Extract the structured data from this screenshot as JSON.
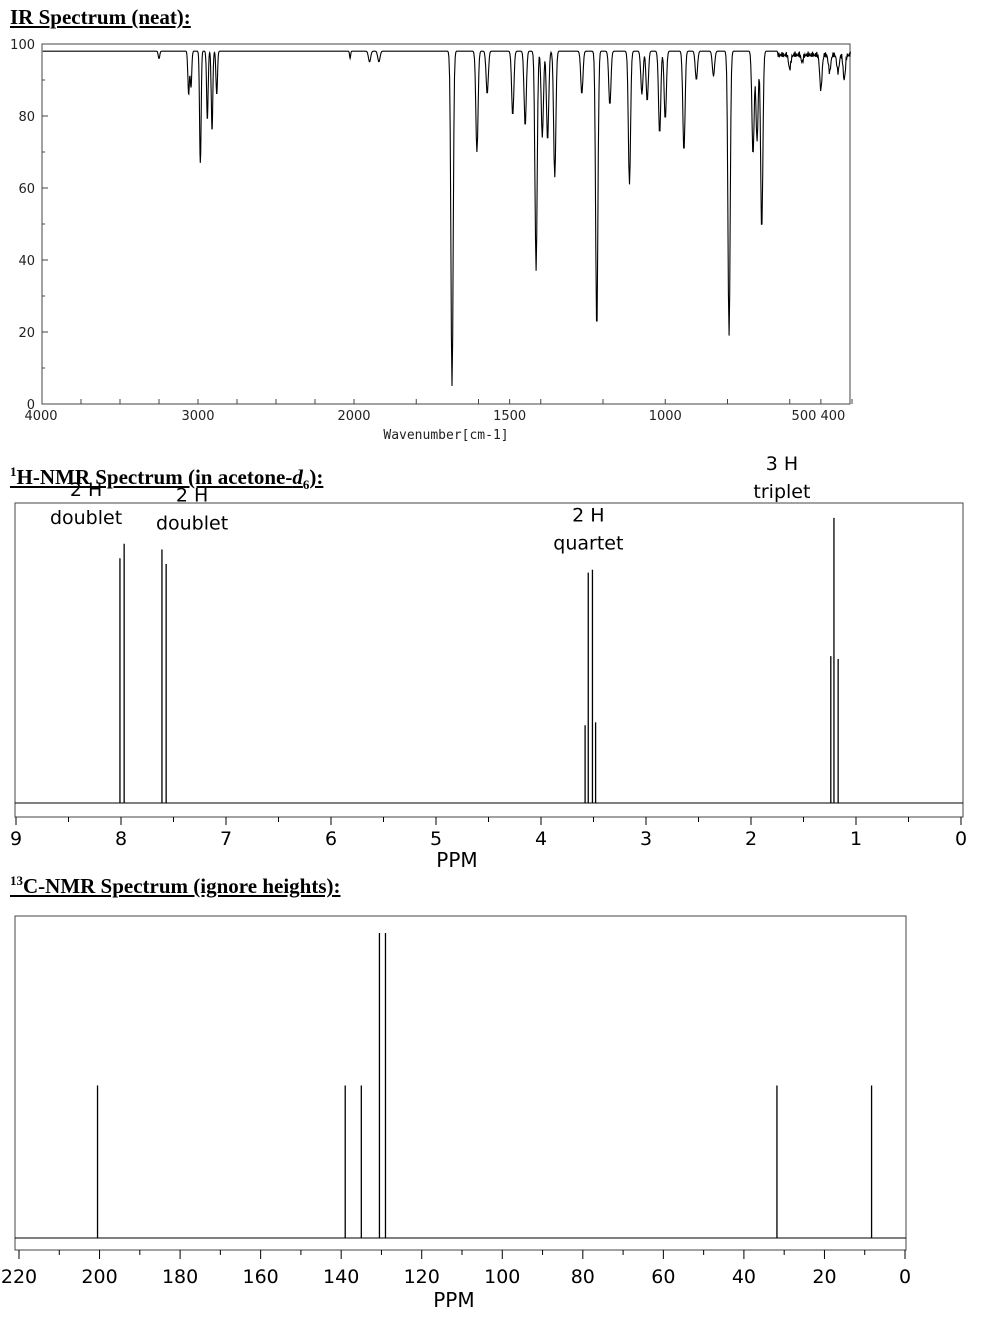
{
  "headings": {
    "ir": {
      "main": "IR Spectrum (neat):"
    },
    "h1": {
      "sup": "1",
      "main": "H-NMR Spectrum (in acetone-",
      "italic": "d",
      "sub": "6",
      "tail": "):"
    },
    "c13": {
      "sup": "13",
      "main": "C-NMR Spectrum (ignore heights):"
    }
  },
  "chart_data": [
    {
      "type": "line",
      "title": "IR Spectrum (neat):",
      "xlabel": "Wavenumber[cm-1]",
      "ylabel": "",
      "x_reversed": true,
      "xlim": [
        4000,
        400
      ],
      "ylim": [
        0,
        100
      ],
      "x_ticks": [
        4000,
        3000,
        2000,
        1500,
        1000,
        "500",
        "400"
      ],
      "x_tick_labels": [
        "4000",
        "3000",
        "2000",
        "1500",
        "1000",
        "500 400"
      ],
      "y_ticks": [
        100,
        80,
        60,
        40,
        20,
        0
      ],
      "y_tick_labels": [
        "100",
        "80",
        "60",
        "40",
        "20",
        "0"
      ],
      "baseline": 98,
      "bands": [
        {
          "x": 3250,
          "y": 96
        },
        {
          "x": 3060,
          "y": 86
        },
        {
          "x": 3045,
          "y": 88
        },
        {
          "x": 2985,
          "y": 67
        },
        {
          "x": 2940,
          "y": 79
        },
        {
          "x": 2910,
          "y": 76
        },
        {
          "x": 2880,
          "y": 86
        },
        {
          "x": 2025,
          "y": 96
        },
        {
          "x": 1950,
          "y": 95
        },
        {
          "x": 1920,
          "y": 95
        },
        {
          "x": 1685,
          "y": 5
        },
        {
          "x": 1605,
          "y": 70
        },
        {
          "x": 1572,
          "y": 86
        },
        {
          "x": 1490,
          "y": 80
        },
        {
          "x": 1450,
          "y": 77
        },
        {
          "x": 1415,
          "y": 37
        },
        {
          "x": 1395,
          "y": 74
        },
        {
          "x": 1378,
          "y": 73
        },
        {
          "x": 1355,
          "y": 63
        },
        {
          "x": 1268,
          "y": 86
        },
        {
          "x": 1220,
          "y": 20
        },
        {
          "x": 1178,
          "y": 83
        },
        {
          "x": 1115,
          "y": 61
        },
        {
          "x": 1075,
          "y": 86
        },
        {
          "x": 1058,
          "y": 84
        },
        {
          "x": 1018,
          "y": 75
        },
        {
          "x": 1000,
          "y": 79
        },
        {
          "x": 940,
          "y": 70
        },
        {
          "x": 900,
          "y": 90
        },
        {
          "x": 845,
          "y": 91
        },
        {
          "x": 795,
          "y": 19
        },
        {
          "x": 718,
          "y": 69
        },
        {
          "x": 705,
          "y": 73
        },
        {
          "x": 690,
          "y": 48
        },
        {
          "x": 600,
          "y": 94
        },
        {
          "x": 560,
          "y": 96
        },
        {
          "x": 500,
          "y": 88
        },
        {
          "x": 472,
          "y": 93
        },
        {
          "x": 445,
          "y": 93
        },
        {
          "x": 425,
          "y": 91
        }
      ]
    },
    {
      "type": "line",
      "title": "H-NMR Spectrum (in acetone-d6):",
      "xlabel": "PPM",
      "ylabel": "",
      "x_reversed": true,
      "xlim": [
        9,
        0
      ],
      "x_tick_labels": [
        "9",
        "8",
        "7",
        "6",
        "5",
        "4",
        "3",
        "2",
        "1",
        "0"
      ],
      "peaks": [
        {
          "label_count": "2 H",
          "label_multiplicity": "doublet",
          "center_ppm": 7.99,
          "lines": [
            {
              "ppm": 8.01,
              "h": 0.85
            },
            {
              "ppm": 7.97,
              "h": 0.9
            }
          ]
        },
        {
          "label_count": "2 H",
          "label_multiplicity": "doublet",
          "center_ppm": 7.59,
          "lines": [
            {
              "ppm": 7.61,
              "h": 0.88
            },
            {
              "ppm": 7.57,
              "h": 0.83
            }
          ]
        },
        {
          "label_count": "2 H",
          "label_multiplicity": "quartet",
          "center_ppm": 3.53,
          "lines": [
            {
              "ppm": 3.58,
              "h": 0.27
            },
            {
              "ppm": 3.55,
              "h": 0.8
            },
            {
              "ppm": 3.51,
              "h": 0.81
            },
            {
              "ppm": 3.48,
              "h": 0.28
            }
          ]
        },
        {
          "label_count": "3 H",
          "label_multiplicity": "triplet",
          "center_ppm": 1.21,
          "lines": [
            {
              "ppm": 1.24,
              "h": 0.51
            },
            {
              "ppm": 1.21,
              "h": 0.99
            },
            {
              "ppm": 1.17,
              "h": 0.5
            }
          ]
        }
      ]
    },
    {
      "type": "line",
      "title": "C-NMR Spectrum (ignore heights):",
      "xlabel": "PPM",
      "ylabel": "",
      "x_reversed": true,
      "xlim": [
        220,
        0
      ],
      "x_tick_labels": [
        "220",
        "200",
        "180",
        "160",
        "140",
        "120",
        "100",
        "80",
        "60",
        "40",
        "20",
        "0"
      ],
      "peaks_ppm": [
        200.5,
        139.0,
        135.0,
        130.5,
        129.0,
        31.8,
        8.3
      ],
      "peaks_height": [
        0.5,
        0.5,
        0.5,
        1.0,
        1.0,
        0.5,
        0.5
      ]
    }
  ]
}
